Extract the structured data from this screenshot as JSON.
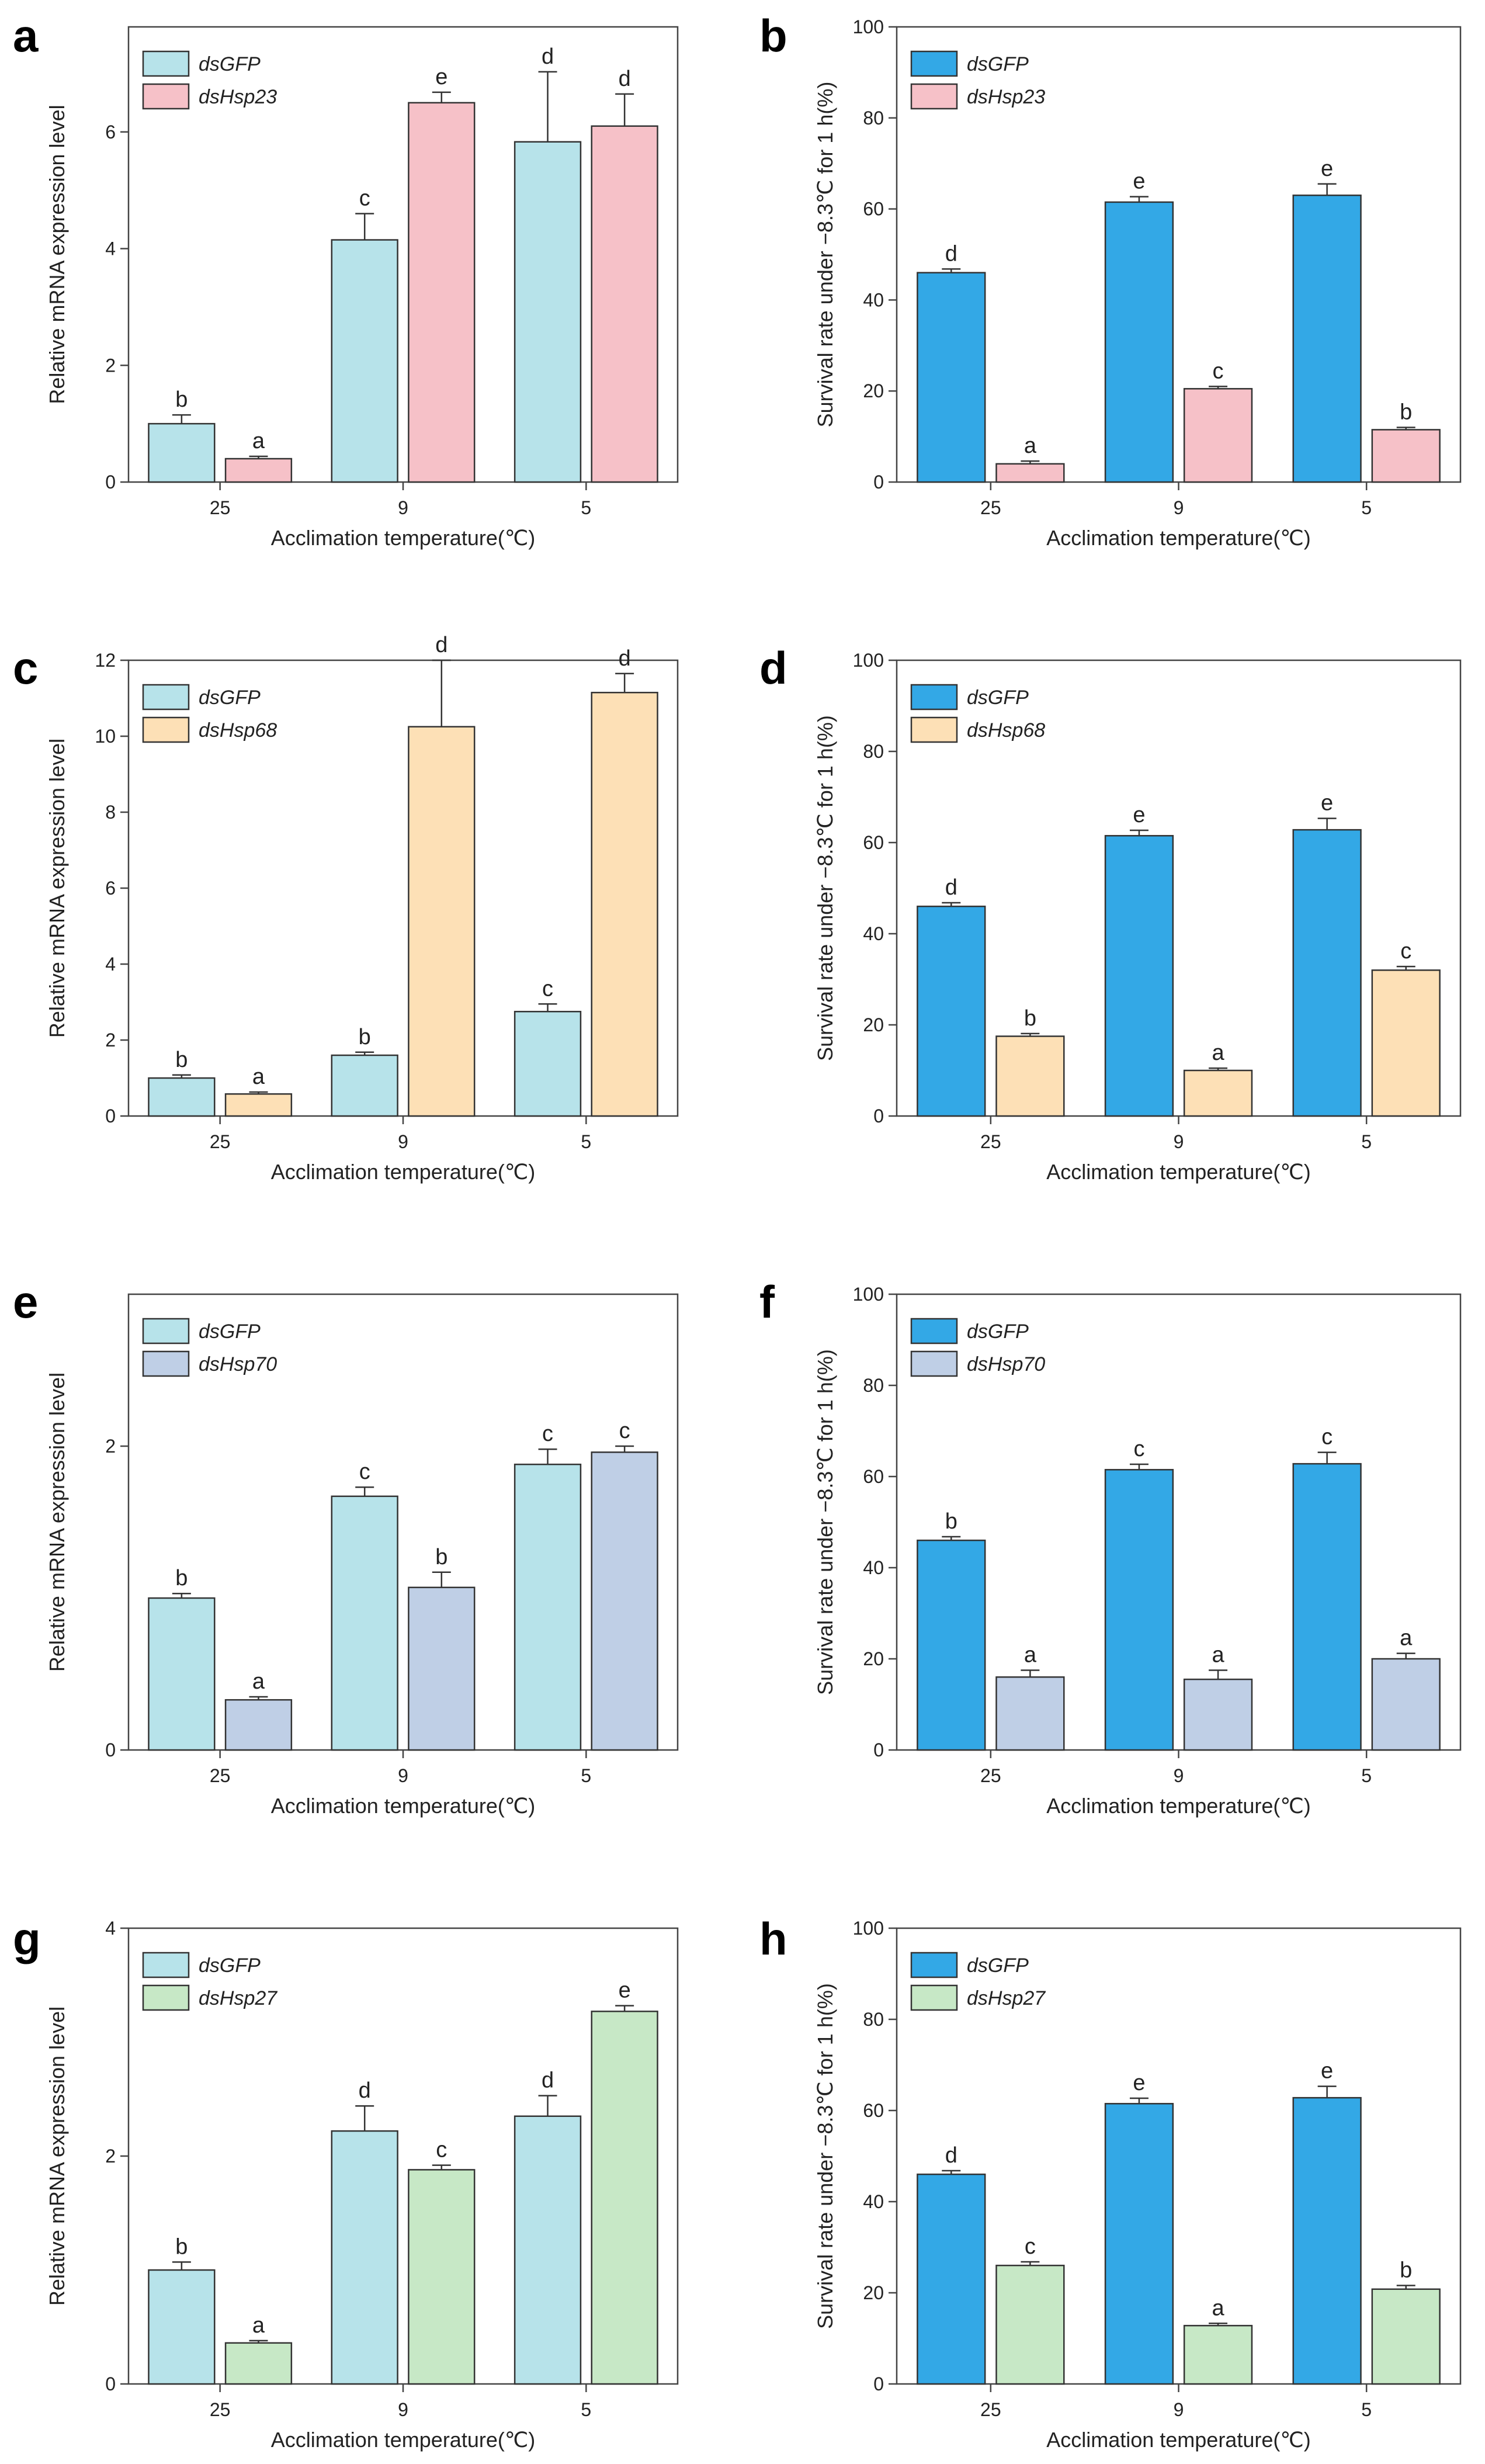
{
  "chart_data": [
    {
      "panel": "a",
      "type": "bar",
      "categories": [
        "25",
        "9",
        "5"
      ],
      "series": [
        {
          "name": "dsGFP",
          "color": "#b7e3ea",
          "values": [
            1.0,
            4.15,
            5.83
          ],
          "errors": [
            0.15,
            0.45,
            1.2
          ],
          "labels": [
            "b",
            "c",
            "d"
          ]
        },
        {
          "name": "dsHsp23",
          "color": "#f6c1c8",
          "values": [
            0.4,
            6.5,
            6.1
          ],
          "errors": [
            0.04,
            0.18,
            0.55
          ],
          "labels": [
            "a",
            "e",
            "d"
          ]
        }
      ],
      "ylim": [
        0,
        7.8
      ],
      "yticks": [
        0,
        2,
        4,
        6
      ],
      "xlabel": "Acclimation temperature(℃)",
      "ylabel": "Relative mRNA expression level"
    },
    {
      "panel": "b",
      "type": "bar",
      "categories": [
        "25",
        "9",
        "5"
      ],
      "series": [
        {
          "name": "dsGFP",
          "color": "#33a8e6",
          "values": [
            46,
            61.5,
            63
          ],
          "errors": [
            0.8,
            1.2,
            2.5
          ],
          "labels": [
            "d",
            "e",
            "e"
          ]
        },
        {
          "name": "dsHsp23",
          "color": "#f6c1c8",
          "values": [
            4,
            20.5,
            11.5
          ],
          "errors": [
            0.6,
            0.5,
            0.5
          ],
          "labels": [
            "a",
            "c",
            "b"
          ]
        }
      ],
      "ylim": [
        0,
        100
      ],
      "yticks": [
        0,
        20,
        40,
        60,
        80,
        100
      ],
      "xlabel": "Acclimation temperature(℃)",
      "ylabel": "Survival rate under −8.3℃ for 1 h(%)"
    },
    {
      "panel": "c",
      "type": "bar",
      "categories": [
        "25",
        "9",
        "5"
      ],
      "series": [
        {
          "name": "dsGFP",
          "color": "#b7e3ea",
          "values": [
            1.0,
            1.6,
            2.75
          ],
          "errors": [
            0.08,
            0.08,
            0.2
          ],
          "labels": [
            "b",
            "b",
            "c"
          ]
        },
        {
          "name": "dsHsp68",
          "color": "#fde0b6",
          "values": [
            0.58,
            10.25,
            11.15
          ],
          "errors": [
            0.05,
            1.75,
            0.5
          ],
          "labels": [
            "a",
            "d",
            "d"
          ]
        }
      ],
      "ylim": [
        0,
        12
      ],
      "yticks": [
        0,
        2,
        4,
        6,
        8,
        10,
        12
      ],
      "xlabel": "Acclimation temperature(℃)",
      "ylabel": "Relative mRNA expression level"
    },
    {
      "panel": "d",
      "type": "bar",
      "categories": [
        "25",
        "9",
        "5"
      ],
      "series": [
        {
          "name": "dsGFP",
          "color": "#33a8e6",
          "values": [
            46,
            61.5,
            62.8
          ],
          "errors": [
            0.8,
            1.2,
            2.5
          ],
          "labels": [
            "d",
            "e",
            "e"
          ]
        },
        {
          "name": "dsHsp68",
          "color": "#fde0b6",
          "values": [
            17.5,
            10,
            32
          ],
          "errors": [
            0.6,
            0.5,
            0.8
          ],
          "labels": [
            "b",
            "a",
            "c"
          ]
        }
      ],
      "ylim": [
        0,
        100
      ],
      "yticks": [
        0,
        20,
        40,
        60,
        80,
        100
      ],
      "xlabel": "Acclimation temperature(℃)",
      "ylabel": "Survival rate under −8.3℃ for 1 h(%)"
    },
    {
      "panel": "e",
      "type": "bar",
      "categories": [
        "25",
        "9",
        "5"
      ],
      "series": [
        {
          "name": "dsGFP",
          "color": "#b7e3ea",
          "values": [
            1.0,
            1.67,
            1.88
          ],
          "errors": [
            0.03,
            0.06,
            0.1
          ],
          "labels": [
            "b",
            "c",
            "c"
          ]
        },
        {
          "name": "dsHsp70",
          "color": "#bfcfe6",
          "values": [
            0.33,
            1.07,
            1.96
          ],
          "errors": [
            0.02,
            0.1,
            0.04
          ],
          "labels": [
            "a",
            "b",
            "c"
          ]
        }
      ],
      "ylim": [
        0,
        3
      ],
      "yticks": [
        0,
        2
      ],
      "xlabel": "Acclimation temperature(℃)",
      "ylabel": "Relative mRNA expression level"
    },
    {
      "panel": "f",
      "type": "bar",
      "categories": [
        "25",
        "9",
        "5"
      ],
      "series": [
        {
          "name": "dsGFP",
          "color": "#33a8e6",
          "values": [
            46,
            61.5,
            62.8
          ],
          "errors": [
            0.8,
            1.2,
            2.5
          ],
          "labels": [
            "b",
            "c",
            "c"
          ]
        },
        {
          "name": "dsHsp70",
          "color": "#bfcfe6",
          "values": [
            16,
            15.5,
            20
          ],
          "errors": [
            1.5,
            2,
            1.2
          ],
          "labels": [
            "a",
            "a",
            "a"
          ]
        }
      ],
      "ylim": [
        0,
        100
      ],
      "yticks": [
        0,
        20,
        40,
        60,
        80,
        100
      ],
      "xlabel": "Acclimation temperature(℃)",
      "ylabel": "Survival rate under −8.3℃ for 1 h(%)"
    },
    {
      "panel": "g",
      "type": "bar",
      "categories": [
        "25",
        "9",
        "5"
      ],
      "series": [
        {
          "name": "dsGFP",
          "color": "#b7e3ea",
          "values": [
            1.0,
            2.22,
            2.35
          ],
          "errors": [
            0.07,
            0.22,
            0.18
          ],
          "labels": [
            "b",
            "d",
            "d"
          ]
        },
        {
          "name": "dsHsp27",
          "color": "#c7e8c6",
          "values": [
            0.36,
            1.88,
            3.27
          ],
          "errors": [
            0.02,
            0.04,
            0.05
          ],
          "labels": [
            "a",
            "c",
            "e"
          ]
        }
      ],
      "ylim": [
        0,
        4
      ],
      "yticks": [
        0,
        2,
        4
      ],
      "xlabel": "Acclimation temperature(℃)",
      "ylabel": "Relative mRNA expression level"
    },
    {
      "panel": "h",
      "type": "bar",
      "categories": [
        "25",
        "9",
        "5"
      ],
      "series": [
        {
          "name": "dsGFP",
          "color": "#33a8e6",
          "values": [
            46,
            61.5,
            62.8
          ],
          "errors": [
            0.8,
            1.2,
            2.5
          ],
          "labels": [
            "d",
            "e",
            "e"
          ]
        },
        {
          "name": "dsHsp27",
          "color": "#c7e8c6",
          "values": [
            26,
            12.8,
            20.8
          ],
          "errors": [
            0.8,
            0.5,
            0.8
          ],
          "labels": [
            "c",
            "a",
            "b"
          ]
        }
      ],
      "ylim": [
        0,
        100
      ],
      "yticks": [
        0,
        20,
        40,
        60,
        80,
        100
      ],
      "xlabel": "Acclimation temperature(℃)",
      "ylabel": "Survival rate under −8.3℃ for 1 h(%)"
    }
  ]
}
